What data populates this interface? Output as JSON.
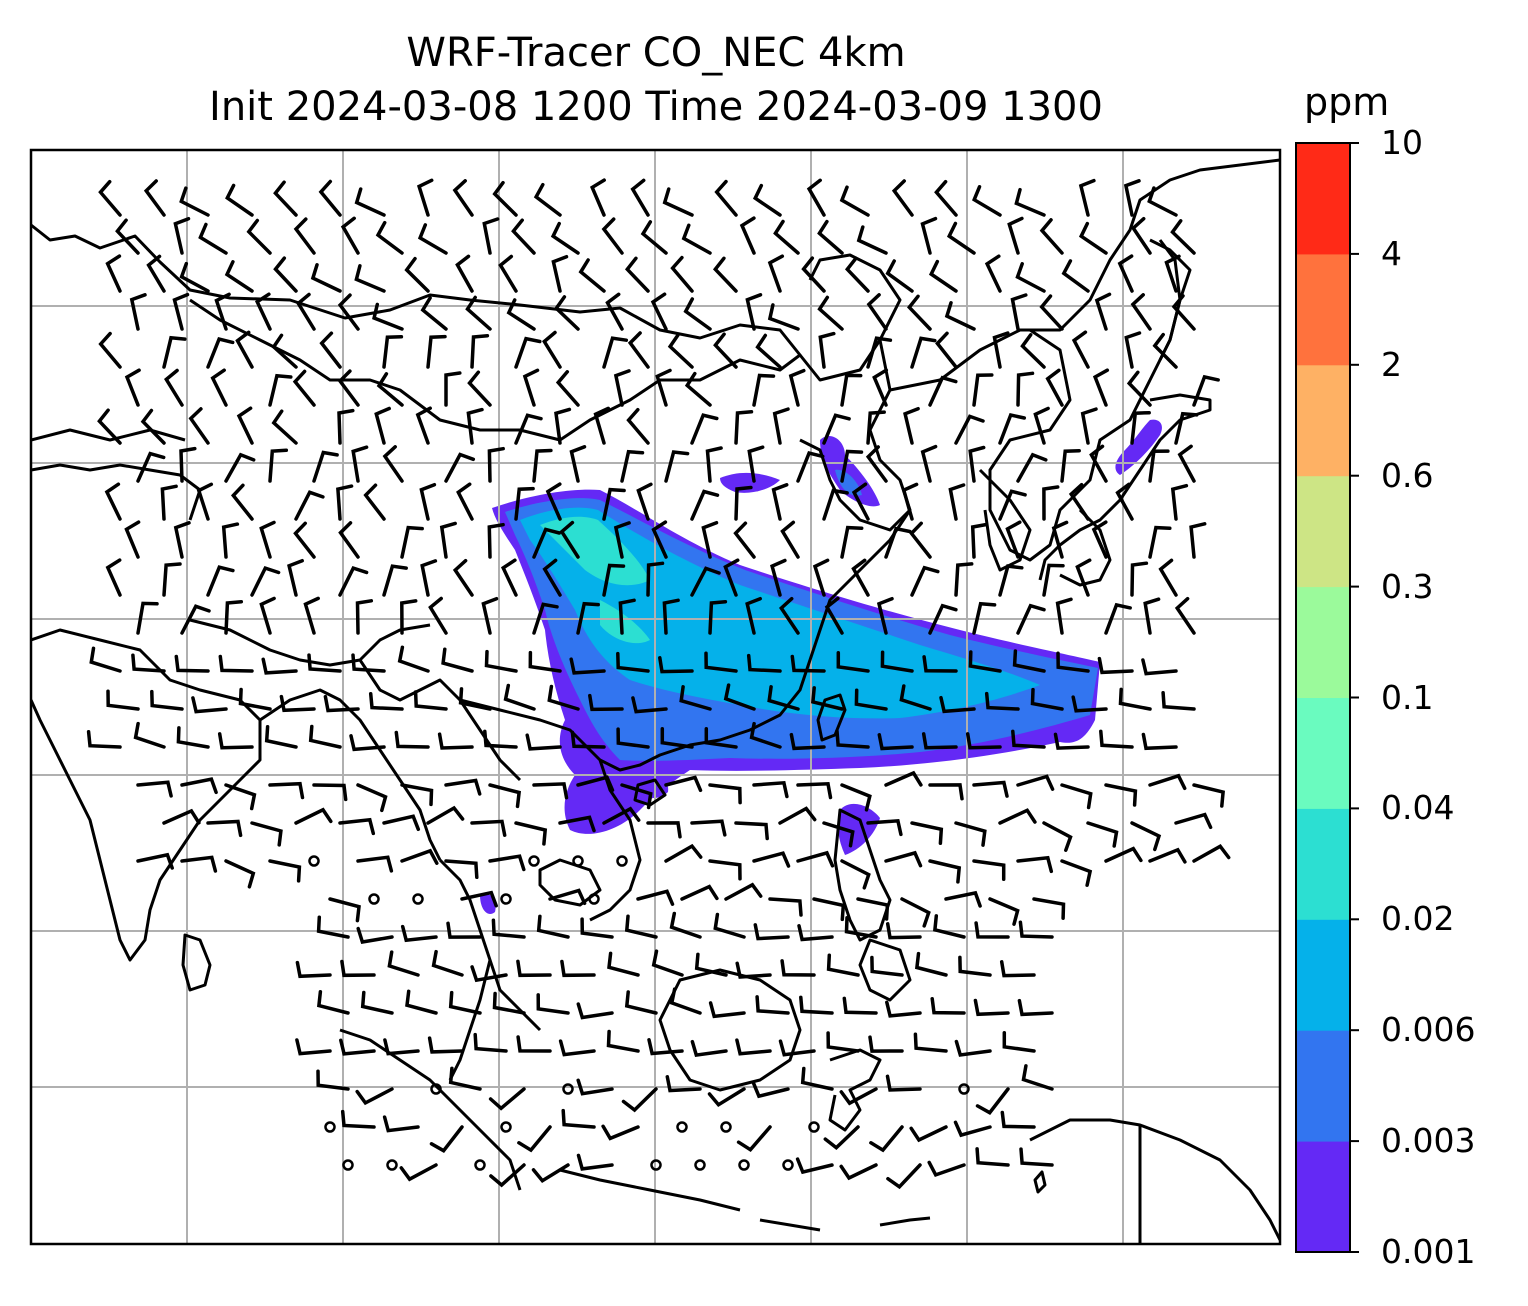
{
  "title": {
    "line1": "WRF-Tracer CO_NEC 4km",
    "line2": "Init 2024-03-08 1200 Time 2024-03-09 1300"
  },
  "colorbar": {
    "unit": "ppm",
    "tick_labels": [
      "0.001",
      "0.003",
      "0.006",
      "0.02",
      "0.04",
      "0.1",
      "0.3",
      "0.6",
      "2",
      "4",
      "10"
    ],
    "colors": [
      "#6429f5",
      "#3275f0",
      "#05b1ea",
      "#2cdfd2",
      "#6afbbf",
      "#9bfa9b",
      "#cde585",
      "#feb164",
      "#ff723d",
      "#ff2a17"
    ]
  },
  "map": {
    "gridline_color": "#b0b0b0",
    "coastline_color": "#000000",
    "field": "CO_NEC tracer concentration",
    "wind_barbs": "black"
  }
}
